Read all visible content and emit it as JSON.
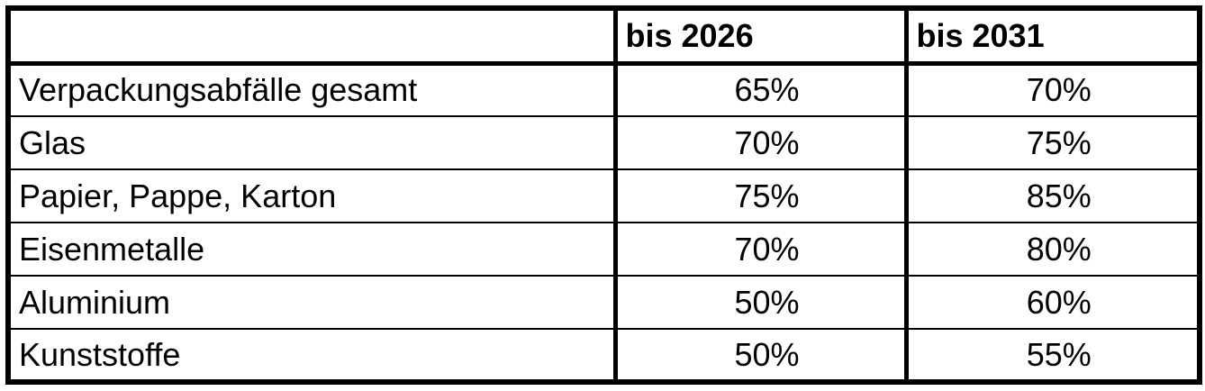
{
  "table": {
    "columns": [
      "",
      "bis 2026",
      "bis 2031"
    ],
    "rows": [
      {
        "label": "Verpackungsabfälle gesamt",
        "v2026": "65%",
        "v2031": "70%"
      },
      {
        "label": "Glas",
        "v2026": "70%",
        "v2031": "75%"
      },
      {
        "label": "Papier, Pappe, Karton",
        "v2026": "75%",
        "v2031": "85%"
      },
      {
        "label": "Eisenmetalle",
        "v2026": "70%",
        "v2031": "80%"
      },
      {
        "label": "Aluminium",
        "v2026": "50%",
        "v2031": "60%"
      },
      {
        "label": "Kunststoffe",
        "v2026": "50%",
        "v2031": "55%"
      }
    ]
  }
}
